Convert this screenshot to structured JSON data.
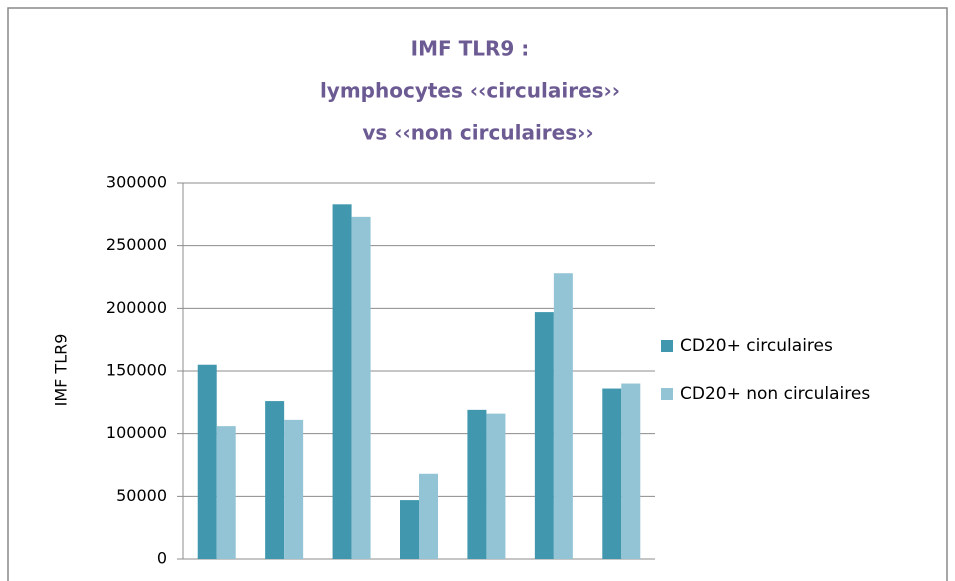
{
  "chart_data": {
    "type": "bar",
    "title": [
      "IMF TLR9 :",
      "lymphocytes ‹‹circulaires››",
      "vs ‹‹non circulaires››"
    ],
    "ylabel": "IMF TLR9",
    "categories": [
      null,
      null,
      null,
      null,
      null,
      null,
      null
    ],
    "series": [
      {
        "name": "CD20+ circulaires",
        "color": "#4198ae",
        "values": [
          155000,
          126000,
          283000,
          47000,
          119000,
          197000,
          136000
        ]
      },
      {
        "name": "CD20+ non circulaires",
        "color": "#93c4d5",
        "values": [
          106000,
          111000,
          273000,
          68000,
          116000,
          228000,
          140000
        ]
      }
    ],
    "ylim": [
      0,
      300000
    ],
    "yticks": [
      0,
      50000,
      100000,
      150000,
      200000,
      250000,
      300000
    ],
    "grid": true,
    "legend": "right"
  }
}
